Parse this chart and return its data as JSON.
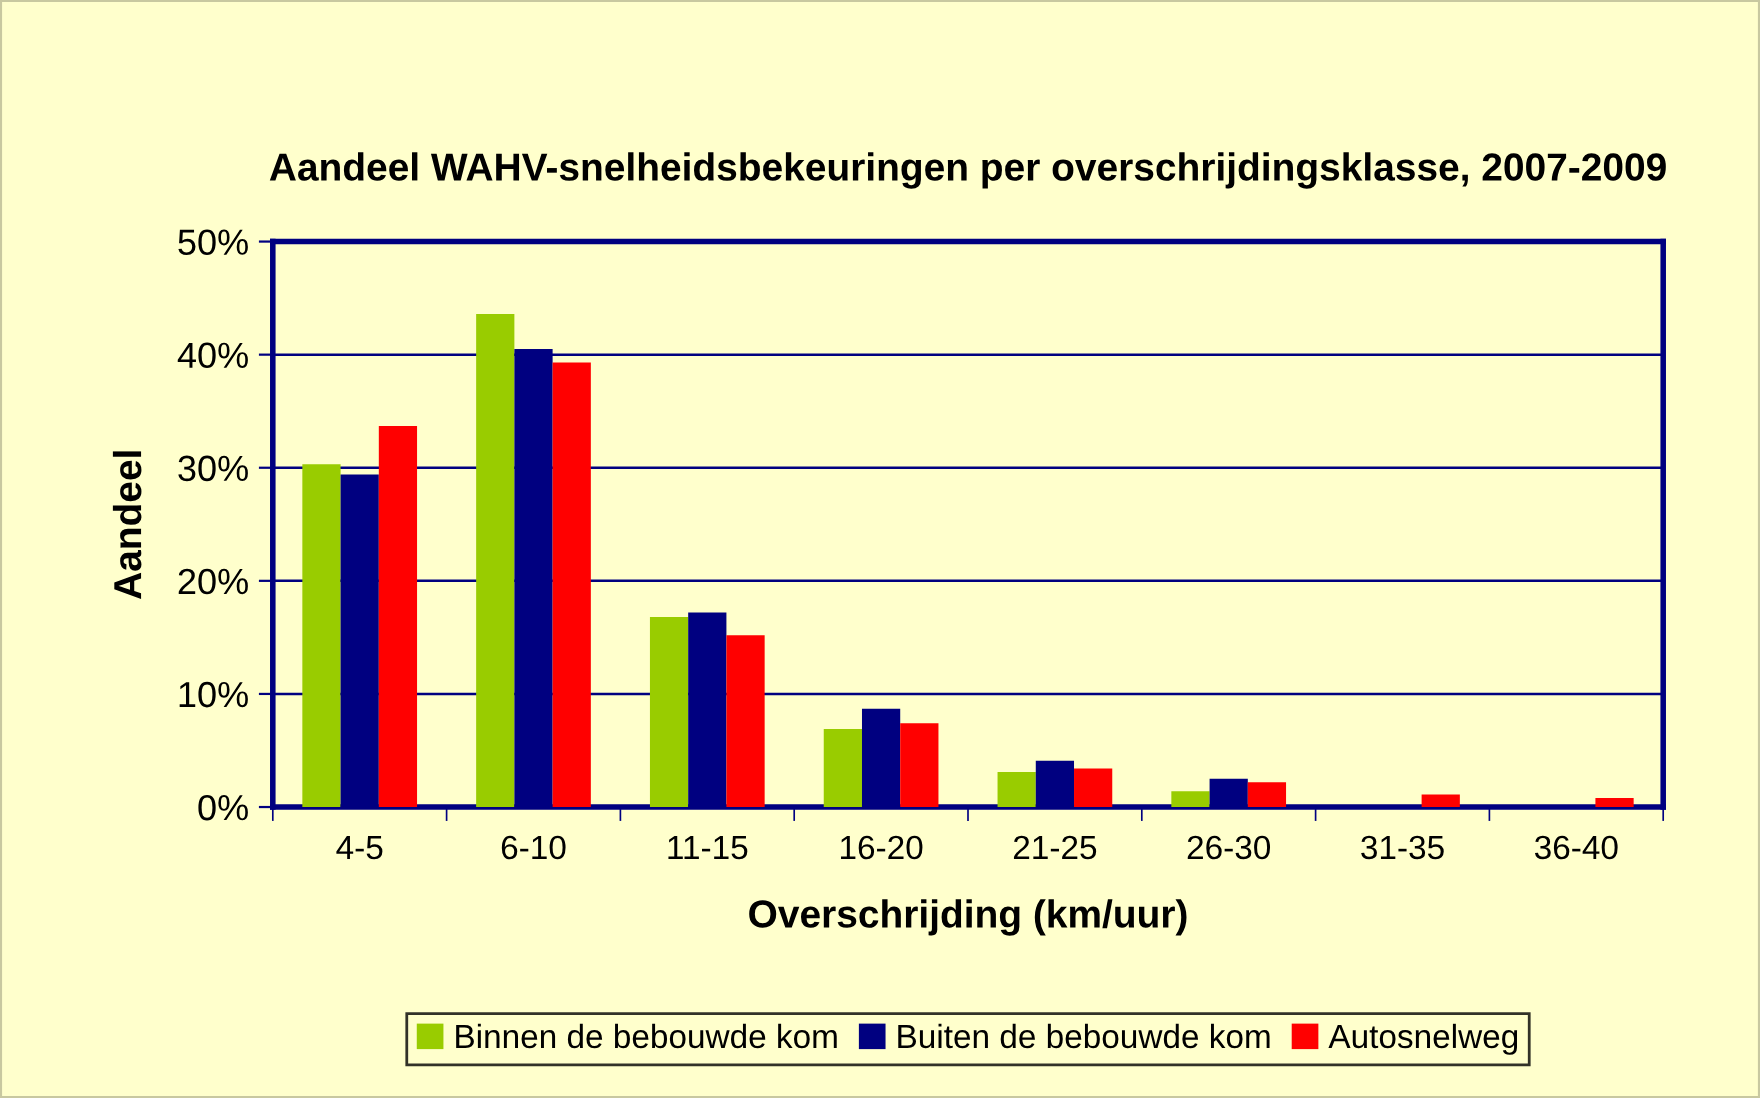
{
  "chart_data": {
    "type": "bar",
    "title": "Aandeel WAHV-snelheidsbekeuringen per overschrijdingsklasse, 2007-2009",
    "xlabel": "Overschrijding (km/uur)",
    "ylabel": "Aandeel",
    "categories": [
      "4-5",
      "6-10",
      "11-15",
      "16-20",
      "21-25",
      "26-30",
      "31-35",
      "36-40"
    ],
    "series": [
      {
        "name": "Binnen de bebouwde kom",
        "color": "#99cc00",
        "values": [
          30.3,
          43.6,
          16.8,
          6.9,
          3.1,
          1.4,
          0,
          0
        ]
      },
      {
        "name": "Buiten de bebouwde kom",
        "color": "#000080",
        "values": [
          29.4,
          40.5,
          17.2,
          8.7,
          4.1,
          2.5,
          0,
          0
        ]
      },
      {
        "name": "Autosnelweg",
        "color": "#ff0000",
        "values": [
          33.7,
          39.3,
          15.2,
          7.4,
          3.4,
          2.2,
          1.1,
          0.8
        ]
      }
    ],
    "ylim": [
      0,
      50
    ],
    "yticks": [
      {
        "value": 0,
        "label": "0%"
      },
      {
        "value": 10,
        "label": "10%"
      },
      {
        "value": 20,
        "label": "20%"
      },
      {
        "value": 30,
        "label": "30%"
      },
      {
        "value": 40,
        "label": "40%"
      },
      {
        "value": 50,
        "label": "50%"
      }
    ],
    "grid": "y",
    "legend": "bottom"
  }
}
